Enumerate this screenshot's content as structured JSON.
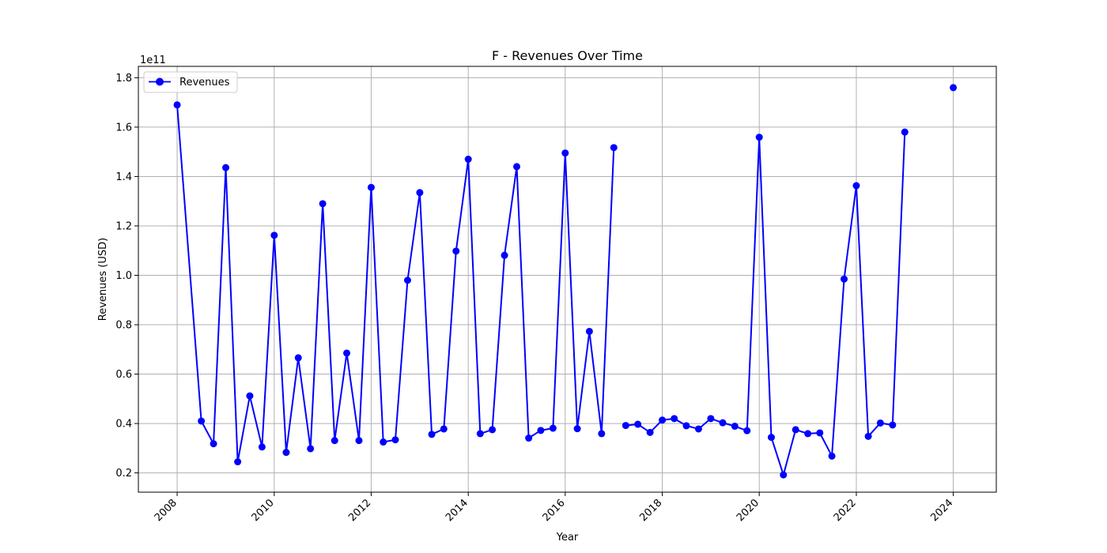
{
  "chart_data": {
    "type": "line",
    "title": "F - Revenues Over Time",
    "xlabel": "Year",
    "ylabel": "Revenues (USD)",
    "y_offset_label": "1e11",
    "xlim": [
      "2007-03-15",
      "2024-11-20"
    ],
    "ylim": [
      0.122,
      1.846
    ],
    "x_ticks": [
      "2008",
      "2010",
      "2012",
      "2014",
      "2016",
      "2018",
      "2020",
      "2022",
      "2024"
    ],
    "y_ticks": [
      "0.2",
      "0.4",
      "0.6",
      "0.8",
      "1.0",
      "1.2",
      "1.4",
      "1.6",
      "1.8"
    ],
    "grid": true,
    "legend_position": "top-left",
    "series": [
      {
        "name": "Revenues",
        "color": "#0000ff",
        "marker": "circle",
        "segments": [
          [
            {
              "x": "2008-01-01",
              "y": 1.69
            },
            {
              "x": "2008-07-01",
              "y": 0.41
            },
            {
              "x": "2008-10-01",
              "y": 0.318
            },
            {
              "x": "2009-01-01",
              "y": 1.436
            },
            {
              "x": "2009-04-01",
              "y": 0.245
            },
            {
              "x": "2009-07-01",
              "y": 0.512
            },
            {
              "x": "2009-10-01",
              "y": 0.305
            },
            {
              "x": "2010-01-01",
              "y": 1.162
            },
            {
              "x": "2010-04-01",
              "y": 0.283
            },
            {
              "x": "2010-07-01",
              "y": 0.666
            },
            {
              "x": "2010-10-01",
              "y": 0.298
            },
            {
              "x": "2011-01-01",
              "y": 1.29
            },
            {
              "x": "2011-04-01",
              "y": 0.331
            },
            {
              "x": "2011-07-01",
              "y": 0.685
            },
            {
              "x": "2011-10-01",
              "y": 0.331
            },
            {
              "x": "2012-01-01",
              "y": 1.356
            },
            {
              "x": "2012-04-01",
              "y": 0.325
            },
            {
              "x": "2012-07-01",
              "y": 0.334
            },
            {
              "x": "2012-10-01",
              "y": 0.98
            },
            {
              "x": "2013-01-01",
              "y": 1.335
            },
            {
              "x": "2013-04-01",
              "y": 0.356
            },
            {
              "x": "2013-07-01",
              "y": 0.378
            },
            {
              "x": "2013-10-01",
              "y": 1.098
            },
            {
              "x": "2014-01-01",
              "y": 1.47
            },
            {
              "x": "2014-04-01",
              "y": 0.359
            },
            {
              "x": "2014-07-01",
              "y": 0.375
            },
            {
              "x": "2014-10-01",
              "y": 1.081
            },
            {
              "x": "2015-01-01",
              "y": 1.44
            },
            {
              "x": "2015-04-01",
              "y": 0.341
            },
            {
              "x": "2015-07-01",
              "y": 0.372
            },
            {
              "x": "2015-10-01",
              "y": 0.381
            },
            {
              "x": "2016-01-01",
              "y": 1.495
            },
            {
              "x": "2016-04-01",
              "y": 0.379
            },
            {
              "x": "2016-07-01",
              "y": 0.773
            },
            {
              "x": "2016-10-01",
              "y": 0.359
            },
            {
              "x": "2017-01-01",
              "y": 1.517
            }
          ],
          [
            {
              "x": "2017-04-01",
              "y": 0.392
            },
            {
              "x": "2017-07-01",
              "y": 0.397
            },
            {
              "x": "2017-10-01",
              "y": 0.364
            },
            {
              "x": "2018-01-01",
              "y": 0.414
            },
            {
              "x": "2018-04-01",
              "y": 0.42
            },
            {
              "x": "2018-07-01",
              "y": 0.391
            },
            {
              "x": "2018-10-01",
              "y": 0.378
            },
            {
              "x": "2019-01-01",
              "y": 0.42
            },
            {
              "x": "2019-04-01",
              "y": 0.403
            },
            {
              "x": "2019-07-01",
              "y": 0.389
            },
            {
              "x": "2019-10-01",
              "y": 0.371
            },
            {
              "x": "2020-01-01",
              "y": 1.559
            },
            {
              "x": "2020-04-01",
              "y": 0.344
            },
            {
              "x": "2020-07-01",
              "y": 0.192
            },
            {
              "x": "2020-10-01",
              "y": 0.375
            },
            {
              "x": "2021-01-01",
              "y": 0.359
            },
            {
              "x": "2021-04-01",
              "y": 0.362
            },
            {
              "x": "2021-07-01",
              "y": 0.268
            },
            {
              "x": "2021-10-01",
              "y": 0.985
            },
            {
              "x": "2022-01-01",
              "y": 1.363
            },
            {
              "x": "2022-04-01",
              "y": 0.348
            },
            {
              "x": "2022-07-01",
              "y": 0.402
            },
            {
              "x": "2022-10-01",
              "y": 0.394
            },
            {
              "x": "2023-01-01",
              "y": 1.58
            }
          ],
          [
            {
              "x": "2024-01-01",
              "y": 1.76
            }
          ]
        ]
      }
    ]
  }
}
